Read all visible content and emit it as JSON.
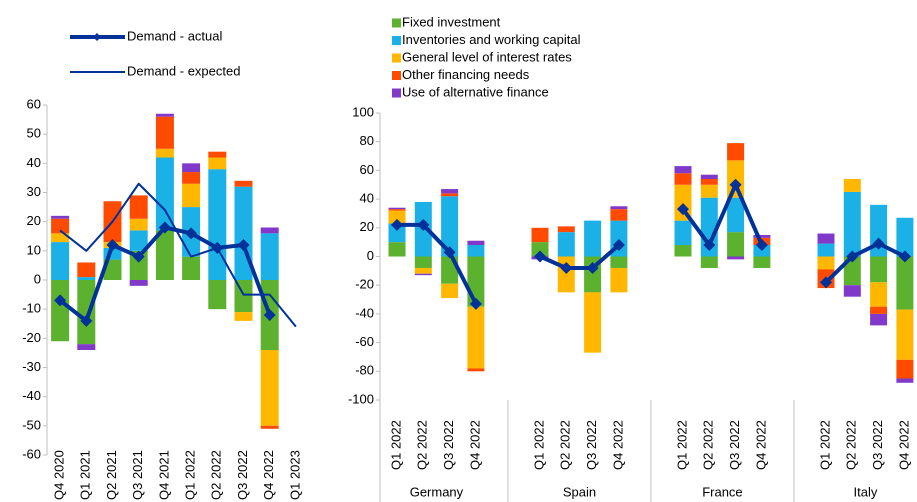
{
  "chart_data": [
    {
      "type": "bar",
      "categories": [
        "Q4 2020",
        "Q1 2021",
        "Q2 2021",
        "Q3 2021",
        "Q4 2021",
        "Q1 2022",
        "Q2 2022",
        "Q3 2022",
        "Q4 2022",
        "Q1 2023"
      ],
      "ylim": [
        -60,
        60
      ],
      "yticks": [
        -60,
        -50,
        -40,
        -30,
        -20,
        -10,
        0,
        10,
        20,
        30,
        40,
        50,
        60
      ],
      "series": [
        {
          "color": "#5cb22e",
          "values": [
            -21,
            -22,
            7,
            10,
            17,
            8,
            -10,
            -11,
            -24,
            null
          ]
        },
        {
          "color": "#1bb0e6",
          "values": [
            13,
            1,
            4,
            7,
            25,
            17,
            38,
            32,
            16,
            null
          ]
        },
        {
          "color": "#ffb700",
          "values": [
            3,
            null,
            2,
            4,
            3,
            8,
            4,
            -3,
            -26,
            null
          ]
        },
        {
          "color": "#ff4b00",
          "values": [
            5,
            5,
            14,
            8,
            11,
            4,
            2,
            2,
            -1,
            null
          ]
        },
        {
          "color": "#8139c9",
          "values": [
            1,
            -2,
            null,
            -2,
            1,
            3,
            null,
            null,
            2,
            null
          ]
        },
        {
          "name": "Demand - actual",
          "type": "line",
          "color": "#003299",
          "width": 4,
          "markers": true,
          "values": [
            -7,
            -14,
            12,
            8,
            18,
            16,
            11,
            12,
            -12,
            null
          ]
        },
        {
          "name": "Demand - expected",
          "type": "line",
          "color": "#003299",
          "width": 2,
          "markers": false,
          "values": [
            17,
            10,
            20,
            33,
            24,
            8,
            11,
            -5,
            -5,
            -16
          ]
        }
      ]
    },
    {
      "type": "bar",
      "groups": [
        "Germany",
        "Spain",
        "France",
        "Italy"
      ],
      "categories": [
        "Q1 2022",
        "Q2 2022",
        "Q3 2022",
        "Q4 2022",
        "Q1 2022",
        "Q2 2022",
        "Q3 2022",
        "Q4 2022",
        "Q1 2022",
        "Q2 2022",
        "Q3 2022",
        "Q4 2022",
        "Q1 2022",
        "Q2 2022",
        "Q3 2022",
        "Q4 2022"
      ],
      "ylim": [
        -100,
        100
      ],
      "yticks": [
        -100,
        -80,
        -60,
        -40,
        -20,
        0,
        20,
        40,
        60,
        80,
        100
      ],
      "series": [
        {
          "name": "Fixed investment",
          "color": "#5cb22e",
          "values": [
            10,
            -8,
            -19,
            -35,
            10,
            null,
            -25,
            -8,
            8,
            -8,
            17,
            -8,
            null,
            -20,
            -18,
            -37
          ]
        },
        {
          "name": "Inventories and working capital",
          "color": "#1bb0e6",
          "values": [
            13,
            38,
            42,
            8,
            null,
            17,
            25,
            25,
            17,
            41,
            24,
            8,
            9,
            45,
            36,
            27
          ]
        },
        {
          "name": "General level of interest rates",
          "color": "#ffb700",
          "values": [
            9,
            -4,
            -10,
            -43,
            null,
            -25,
            -42,
            -17,
            25,
            9,
            26,
            null,
            -9,
            9,
            -17,
            -35
          ]
        },
        {
          "name": "Other financing needs",
          "color": "#ff4b00",
          "values": [
            1,
            null,
            2,
            -2,
            10,
            4,
            null,
            8,
            8,
            4,
            12,
            5,
            -13,
            null,
            -5,
            -13
          ]
        },
        {
          "name": "Use of alternative finance",
          "color": "#8139c9",
          "values": [
            1,
            -1,
            3,
            3,
            -2,
            null,
            null,
            2,
            5,
            3,
            -2,
            2,
            7,
            -8,
            -8,
            -3
          ]
        },
        {
          "type": "line",
          "color": "#003299",
          "width": 4,
          "markers": true,
          "values": [
            22,
            22,
            3,
            -33,
            0,
            -8,
            -8,
            8,
            33,
            8,
            50,
            8,
            -18,
            0,
            9,
            0
          ]
        }
      ]
    }
  ]
}
